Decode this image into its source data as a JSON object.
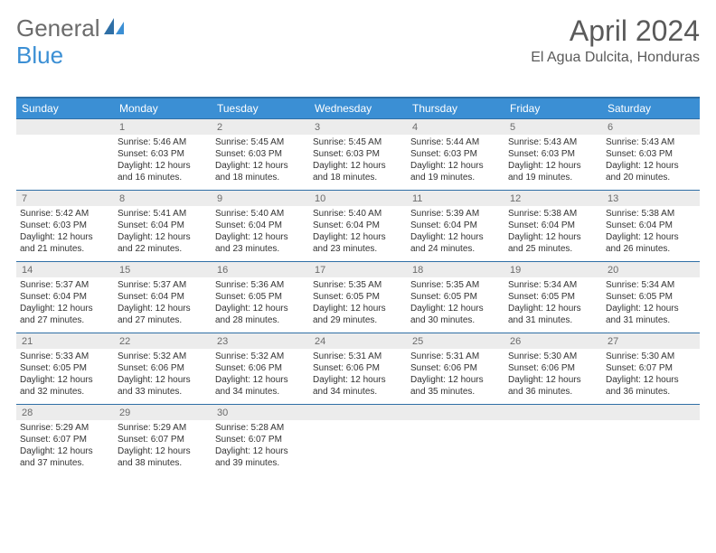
{
  "logo": {
    "text1": "General",
    "text2": "Blue"
  },
  "title": "April 2024",
  "location": "El Agua Dulcita, Honduras",
  "colors": {
    "header_bg": "#3b8fd4",
    "border": "#2f6fa6",
    "daynum_bg": "#ececec",
    "text": "#333333",
    "muted": "#6b6b6b"
  },
  "day_names": [
    "Sunday",
    "Monday",
    "Tuesday",
    "Wednesday",
    "Thursday",
    "Friday",
    "Saturday"
  ],
  "weeks": [
    [
      {
        "n": "",
        "sunrise": "",
        "sunset": "",
        "daylight": ""
      },
      {
        "n": "1",
        "sunrise": "Sunrise: 5:46 AM",
        "sunset": "Sunset: 6:03 PM",
        "daylight": "Daylight: 12 hours and 16 minutes."
      },
      {
        "n": "2",
        "sunrise": "Sunrise: 5:45 AM",
        "sunset": "Sunset: 6:03 PM",
        "daylight": "Daylight: 12 hours and 18 minutes."
      },
      {
        "n": "3",
        "sunrise": "Sunrise: 5:45 AM",
        "sunset": "Sunset: 6:03 PM",
        "daylight": "Daylight: 12 hours and 18 minutes."
      },
      {
        "n": "4",
        "sunrise": "Sunrise: 5:44 AM",
        "sunset": "Sunset: 6:03 PM",
        "daylight": "Daylight: 12 hours and 19 minutes."
      },
      {
        "n": "5",
        "sunrise": "Sunrise: 5:43 AM",
        "sunset": "Sunset: 6:03 PM",
        "daylight": "Daylight: 12 hours and 19 minutes."
      },
      {
        "n": "6",
        "sunrise": "Sunrise: 5:43 AM",
        "sunset": "Sunset: 6:03 PM",
        "daylight": "Daylight: 12 hours and 20 minutes."
      }
    ],
    [
      {
        "n": "7",
        "sunrise": "Sunrise: 5:42 AM",
        "sunset": "Sunset: 6:03 PM",
        "daylight": "Daylight: 12 hours and 21 minutes."
      },
      {
        "n": "8",
        "sunrise": "Sunrise: 5:41 AM",
        "sunset": "Sunset: 6:04 PM",
        "daylight": "Daylight: 12 hours and 22 minutes."
      },
      {
        "n": "9",
        "sunrise": "Sunrise: 5:40 AM",
        "sunset": "Sunset: 6:04 PM",
        "daylight": "Daylight: 12 hours and 23 minutes."
      },
      {
        "n": "10",
        "sunrise": "Sunrise: 5:40 AM",
        "sunset": "Sunset: 6:04 PM",
        "daylight": "Daylight: 12 hours and 23 minutes."
      },
      {
        "n": "11",
        "sunrise": "Sunrise: 5:39 AM",
        "sunset": "Sunset: 6:04 PM",
        "daylight": "Daylight: 12 hours and 24 minutes."
      },
      {
        "n": "12",
        "sunrise": "Sunrise: 5:38 AM",
        "sunset": "Sunset: 6:04 PM",
        "daylight": "Daylight: 12 hours and 25 minutes."
      },
      {
        "n": "13",
        "sunrise": "Sunrise: 5:38 AM",
        "sunset": "Sunset: 6:04 PM",
        "daylight": "Daylight: 12 hours and 26 minutes."
      }
    ],
    [
      {
        "n": "14",
        "sunrise": "Sunrise: 5:37 AM",
        "sunset": "Sunset: 6:04 PM",
        "daylight": "Daylight: 12 hours and 27 minutes."
      },
      {
        "n": "15",
        "sunrise": "Sunrise: 5:37 AM",
        "sunset": "Sunset: 6:04 PM",
        "daylight": "Daylight: 12 hours and 27 minutes."
      },
      {
        "n": "16",
        "sunrise": "Sunrise: 5:36 AM",
        "sunset": "Sunset: 6:05 PM",
        "daylight": "Daylight: 12 hours and 28 minutes."
      },
      {
        "n": "17",
        "sunrise": "Sunrise: 5:35 AM",
        "sunset": "Sunset: 6:05 PM",
        "daylight": "Daylight: 12 hours and 29 minutes."
      },
      {
        "n": "18",
        "sunrise": "Sunrise: 5:35 AM",
        "sunset": "Sunset: 6:05 PM",
        "daylight": "Daylight: 12 hours and 30 minutes."
      },
      {
        "n": "19",
        "sunrise": "Sunrise: 5:34 AM",
        "sunset": "Sunset: 6:05 PM",
        "daylight": "Daylight: 12 hours and 31 minutes."
      },
      {
        "n": "20",
        "sunrise": "Sunrise: 5:34 AM",
        "sunset": "Sunset: 6:05 PM",
        "daylight": "Daylight: 12 hours and 31 minutes."
      }
    ],
    [
      {
        "n": "21",
        "sunrise": "Sunrise: 5:33 AM",
        "sunset": "Sunset: 6:05 PM",
        "daylight": "Daylight: 12 hours and 32 minutes."
      },
      {
        "n": "22",
        "sunrise": "Sunrise: 5:32 AM",
        "sunset": "Sunset: 6:06 PM",
        "daylight": "Daylight: 12 hours and 33 minutes."
      },
      {
        "n": "23",
        "sunrise": "Sunrise: 5:32 AM",
        "sunset": "Sunset: 6:06 PM",
        "daylight": "Daylight: 12 hours and 34 minutes."
      },
      {
        "n": "24",
        "sunrise": "Sunrise: 5:31 AM",
        "sunset": "Sunset: 6:06 PM",
        "daylight": "Daylight: 12 hours and 34 minutes."
      },
      {
        "n": "25",
        "sunrise": "Sunrise: 5:31 AM",
        "sunset": "Sunset: 6:06 PM",
        "daylight": "Daylight: 12 hours and 35 minutes."
      },
      {
        "n": "26",
        "sunrise": "Sunrise: 5:30 AM",
        "sunset": "Sunset: 6:06 PM",
        "daylight": "Daylight: 12 hours and 36 minutes."
      },
      {
        "n": "27",
        "sunrise": "Sunrise: 5:30 AM",
        "sunset": "Sunset: 6:07 PM",
        "daylight": "Daylight: 12 hours and 36 minutes."
      }
    ],
    [
      {
        "n": "28",
        "sunrise": "Sunrise: 5:29 AM",
        "sunset": "Sunset: 6:07 PM",
        "daylight": "Daylight: 12 hours and 37 minutes."
      },
      {
        "n": "29",
        "sunrise": "Sunrise: 5:29 AM",
        "sunset": "Sunset: 6:07 PM",
        "daylight": "Daylight: 12 hours and 38 minutes."
      },
      {
        "n": "30",
        "sunrise": "Sunrise: 5:28 AM",
        "sunset": "Sunset: 6:07 PM",
        "daylight": "Daylight: 12 hours and 39 minutes."
      },
      {
        "n": "",
        "sunrise": "",
        "sunset": "",
        "daylight": ""
      },
      {
        "n": "",
        "sunrise": "",
        "sunset": "",
        "daylight": ""
      },
      {
        "n": "",
        "sunrise": "",
        "sunset": "",
        "daylight": ""
      },
      {
        "n": "",
        "sunrise": "",
        "sunset": "",
        "daylight": ""
      }
    ]
  ]
}
